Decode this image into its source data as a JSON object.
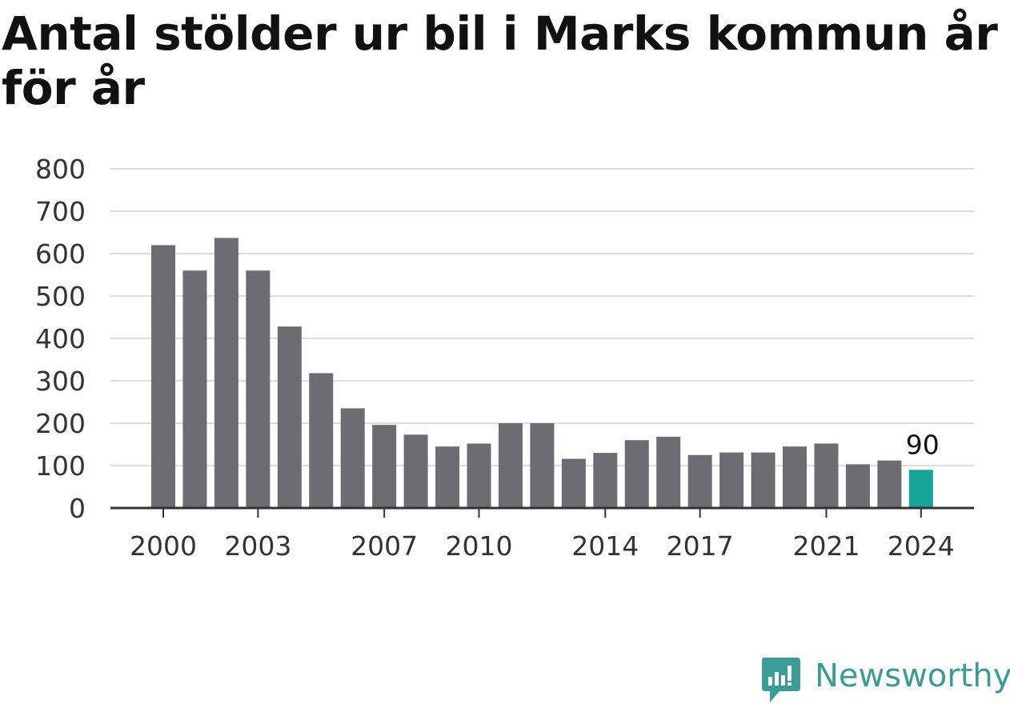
{
  "title": "Antal stölder ur bil i Marks kommun år för år",
  "brand": {
    "name": "Newsworthy",
    "color": "#3a9c97"
  },
  "colors": {
    "bar": "#6d6c72",
    "highlight": "#16a398",
    "grid": "#dddddd",
    "axis": "#333333",
    "text": "#333333"
  },
  "chart_data": {
    "type": "bar",
    "title": "Antal stölder ur bil i Marks kommun år för år",
    "categories": [
      "2000",
      "2001",
      "2002",
      "2003",
      "2004",
      "2005",
      "2006",
      "2007",
      "2008",
      "2009",
      "2010",
      "2011",
      "2012",
      "2013",
      "2014",
      "2015",
      "2016",
      "2017",
      "2018",
      "2019",
      "2020",
      "2021",
      "2022",
      "2023",
      "2024"
    ],
    "values": [
      620,
      560,
      637,
      560,
      428,
      318,
      235,
      196,
      173,
      145,
      152,
      200,
      200,
      116,
      130,
      160,
      168,
      125,
      131,
      131,
      145,
      152,
      103,
      112,
      90
    ],
    "x_tick_labels": [
      "2000",
      "2003",
      "2007",
      "2010",
      "2014",
      "2017",
      "2021",
      "2024"
    ],
    "y_ticks": [
      0,
      100,
      200,
      300,
      400,
      500,
      600,
      700,
      800
    ],
    "ylim": [
      0,
      800
    ],
    "xlabel": "",
    "ylabel": "",
    "grid": true,
    "highlight": {
      "category": "2024",
      "label": "90"
    }
  }
}
